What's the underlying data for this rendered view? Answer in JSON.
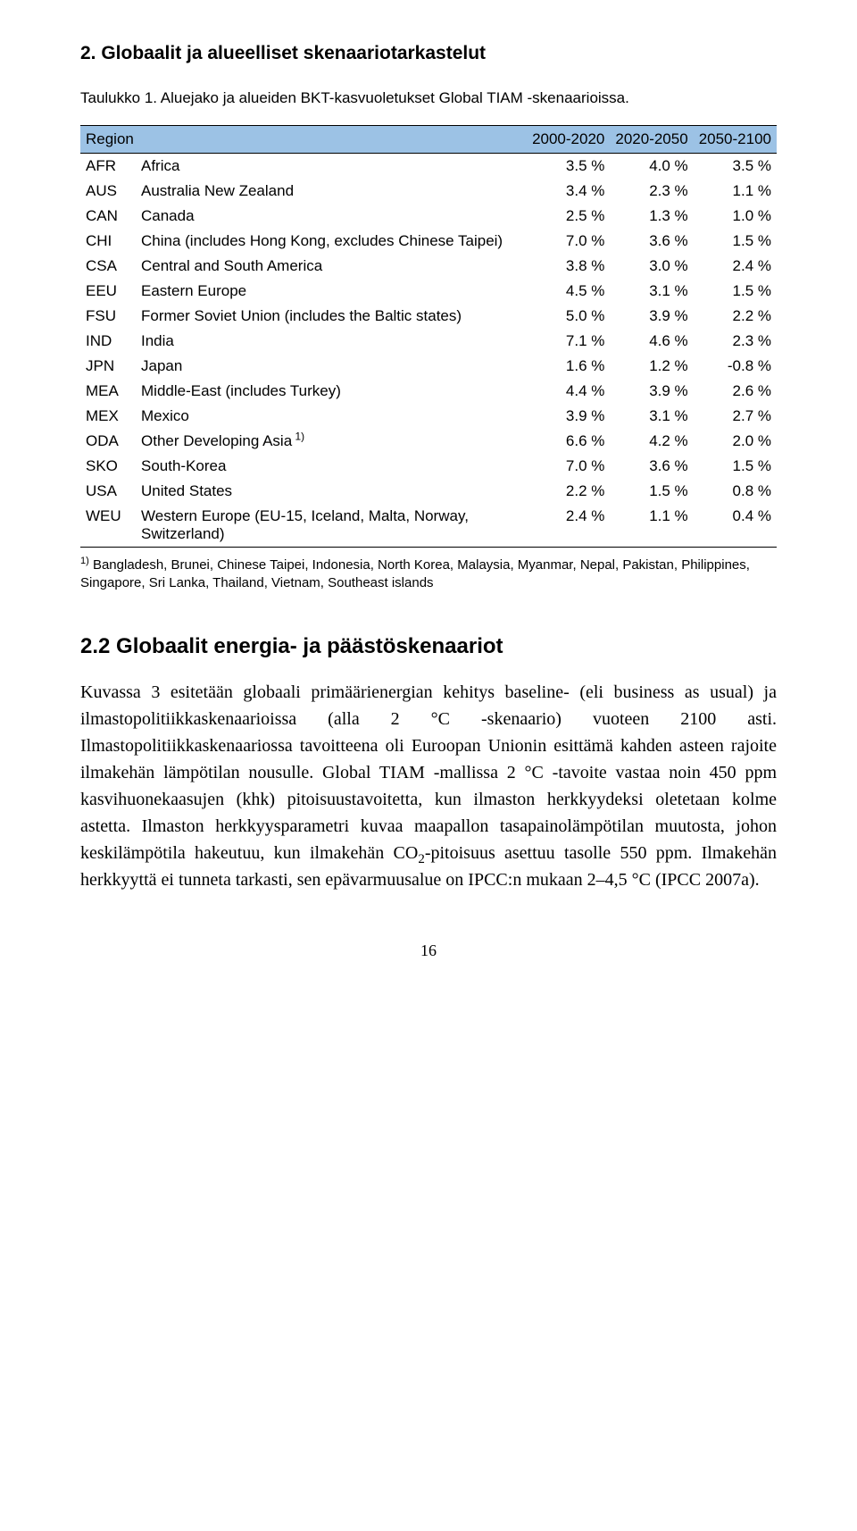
{
  "heading": "2. Globaalit ja alueelliset skenaariotarkastelut",
  "caption": "Taulukko 1. Aluejako ja alueiden BKT-kasvuoletukset Global TIAM -skenaarioissa.",
  "table": {
    "header_bg": "#9cc2e5",
    "border_color": "#000000",
    "font_size": 17,
    "columns": {
      "region_label": "Region",
      "p1": "2000-2020",
      "p2": "2020-2050",
      "p3": "2050-2100"
    },
    "rows": [
      {
        "code": "AFR",
        "desc": "Africa",
        "v1": "3.5 %",
        "v2": "4.0 %",
        "v3": "3.5 %"
      },
      {
        "code": "AUS",
        "desc": "Australia New Zealand",
        "v1": "3.4 %",
        "v2": "2.3 %",
        "v3": "1.1 %"
      },
      {
        "code": "CAN",
        "desc": "Canada",
        "v1": "2.5 %",
        "v2": "1.3 %",
        "v3": "1.0 %"
      },
      {
        "code": "CHI",
        "desc": "China (includes Hong Kong, excludes Chinese Taipei)",
        "v1": "7.0 %",
        "v2": "3.6 %",
        "v3": "1.5 %"
      },
      {
        "code": "CSA",
        "desc": "Central and South America",
        "v1": "3.8 %",
        "v2": "3.0 %",
        "v3": "2.4 %"
      },
      {
        "code": "EEU",
        "desc": "Eastern Europe",
        "v1": "4.5 %",
        "v2": "3.1 %",
        "v3": "1.5 %"
      },
      {
        "code": "FSU",
        "desc": "Former Soviet Union (includes the Baltic states)",
        "v1": "5.0 %",
        "v2": "3.9 %",
        "v3": "2.2 %"
      },
      {
        "code": "IND",
        "desc": "India",
        "v1": "7.1 %",
        "v2": "4.6 %",
        "v3": "2.3 %"
      },
      {
        "code": "JPN",
        "desc": "Japan",
        "v1": "1.6 %",
        "v2": "1.2 %",
        "v3": "-0.8 %"
      },
      {
        "code": "MEA",
        "desc": "Middle-East (includes Turkey)",
        "v1": "4.4 %",
        "v2": "3.9 %",
        "v3": "2.6 %"
      },
      {
        "code": "MEX",
        "desc": "Mexico",
        "v1": "3.9 %",
        "v2": "3.1 %",
        "v3": "2.7 %"
      },
      {
        "code": "ODA",
        "desc": "Other Developing Asia",
        "sup": "1)",
        "v1": "6.6 %",
        "v2": "4.2 %",
        "v3": "2.0 %"
      },
      {
        "code": "SKO",
        "desc": "South-Korea",
        "v1": "7.0 %",
        "v2": "3.6 %",
        "v3": "1.5 %"
      },
      {
        "code": "USA",
        "desc": "United States",
        "v1": "2.2 %",
        "v2": "1.5 %",
        "v3": "0.8 %"
      },
      {
        "code": "WEU",
        "desc": "Western Europe (EU-15, Iceland, Malta, Norway, Switzerland)",
        "v1": "2.4 %",
        "v2": "1.1 %",
        "v3": "0.4 %"
      }
    ]
  },
  "footnote": {
    "marker": "1)",
    "text": "Bangladesh, Brunei, Chinese Taipei, Indonesia, North Korea, Malaysia, Myanmar, Nepal, Pakistan, Philippines, Singapore, Sri Lanka, Thailand, Vietnam, Southeast islands"
  },
  "subsection": "2.2  Globaalit energia- ja päästöskenaariot",
  "paragraph": {
    "pre": "Kuvassa 3 esitetään globaali primäärienergian kehitys baseline- (eli business as usual) ja ilmastopolitiikkaskenaarioissa (alla 2 °C -skenaario) vuoteen 2100 asti. Ilmastopolitiikkaskenaariossa tavoitteena oli Euroopan Unionin esittämä kahden asteen rajoite ilmakehän lämpötilan nousulle. Global TIAM -mallissa 2 °C -tavoite vastaa noin 450 ppm kasvihuonekaasujen (khk) pitoisuustavoitetta, kun ilmaston herkkyydeksi oletetaan kolme astetta. Ilmaston herkkyysparametri kuvaa maapallon tasapainolämpötilan muutosta, johon keskilämpötila hakeutuu, kun ilmakehän CO",
    "sub": "2",
    "post": "-pitoisuus asettuu tasolle 550 ppm. Ilmakehän herkkyyttä ei tunneta tarkasti, sen epävarmuusalue on IPCC:n mukaan 2–4,5 °C (IPCC 2007a)."
  },
  "page_number": "16",
  "colors": {
    "text": "#000000",
    "background": "#ffffff"
  }
}
